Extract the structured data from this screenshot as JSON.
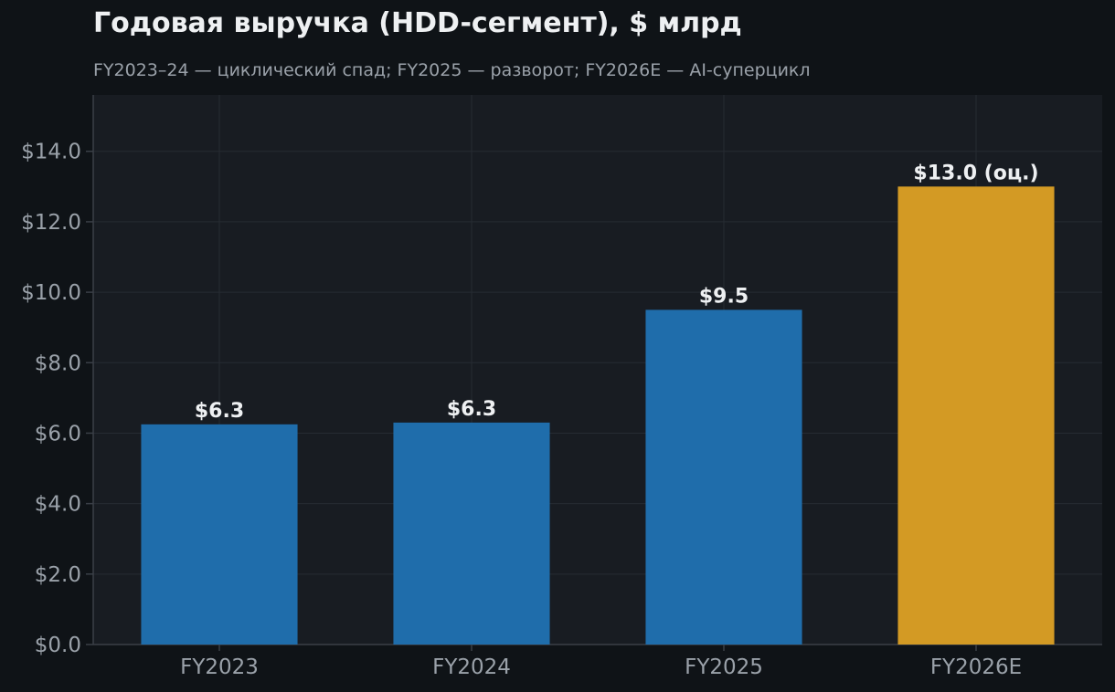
{
  "chart_data": {
    "type": "bar",
    "title": "Годовая выручка (HDD-сегмент), $ млрд",
    "subtitle": "FY2023–24 — циклический спад; FY2025 — разворот; FY2026E — AI-суперцикл",
    "categories": [
      "FY2023",
      "FY2024",
      "FY2025",
      "FY2026E"
    ],
    "values": [
      6.25,
      6.3,
      9.5,
      13.0
    ],
    "data_labels": [
      "$6.3",
      "$6.3",
      "$9.5",
      "$13.0 (оц.)"
    ],
    "ylim": [
      0,
      15.6
    ],
    "yticks": [
      0,
      2,
      4,
      6,
      8,
      10,
      12,
      14
    ],
    "ytick_labels": [
      "$0.0",
      "$2.0",
      "$4.0",
      "$6.0",
      "$8.0",
      "$10.0",
      "$12.0",
      "$14.0"
    ],
    "grid": true,
    "xlabel": "",
    "ylabel": "",
    "colors": {
      "actual": "#1f6dab",
      "estimate": "#d39a24",
      "background": "#0f1317",
      "plot_background": "#181c22",
      "grid": "#262b33",
      "axis": "#3a3f47"
    },
    "bar_color_roles": [
      "actual",
      "actual",
      "actual",
      "estimate"
    ]
  }
}
